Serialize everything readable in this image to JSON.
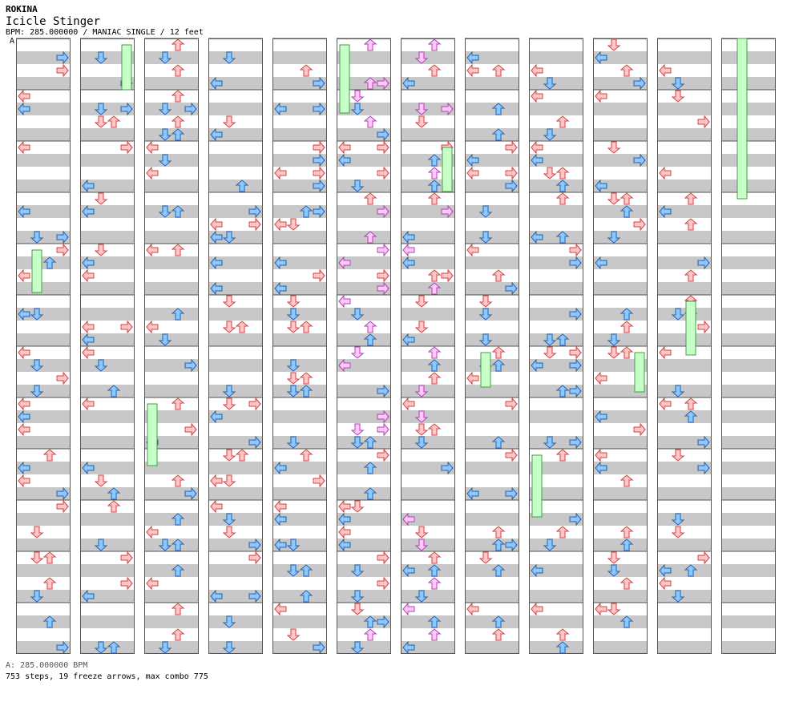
{
  "header": {
    "artist": "ROKINA",
    "title": "Icicle Stinger",
    "info": "BPM: 285.000000 / MANIAC SINGLE / 12 feet",
    "bpm_marker": "A"
  },
  "footer": {
    "bpm_legend": "A: 285.000000 BPM",
    "stats": "753 steps, 19 freeze arrows, max combo 775"
  },
  "colors": {
    "red_arrow": "#ffc8c8",
    "red_edge": "#d04040",
    "blue_arrow": "#8cc8ff",
    "blue_edge": "#2860b0",
    "pink_arrow": "#ffc8ff",
    "pink_edge": "#b040b0",
    "freeze": "#c8ffc8",
    "freeze_edge": "#40a040",
    "stripe": "#c8c8c8"
  },
  "chart_data": {
    "type": "step-chart",
    "columns": 12,
    "measures_per_column": 12,
    "lanes": [
      "left",
      "down",
      "up",
      "right"
    ],
    "bpm": 285,
    "total_steps": 753,
    "freeze_arrows": 19,
    "max_combo": 775
  }
}
